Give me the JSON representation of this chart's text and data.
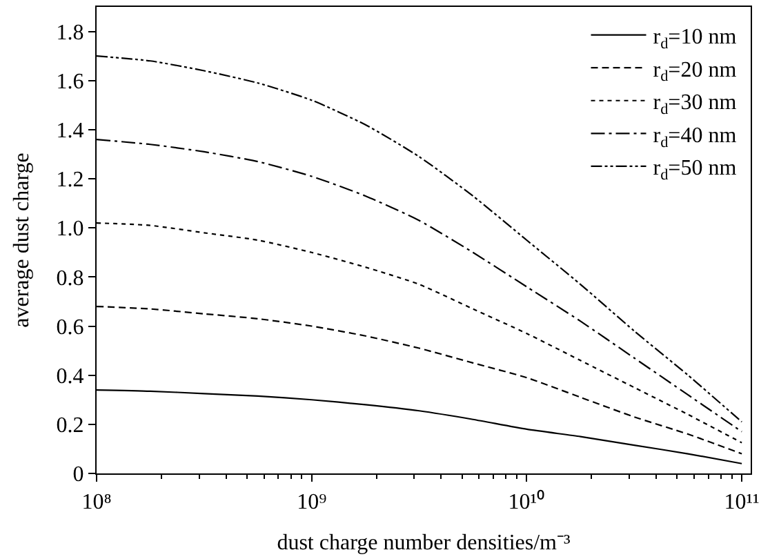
{
  "chart_data": {
    "type": "line",
    "xlabel": "dust charge number densities/m⁻³",
    "ylabel": "average dust charge",
    "log": "x",
    "x": [
      100000000.0,
      177800000.0,
      316200000.0,
      562300000.0,
      1000000000.0,
      1778000000.0,
      3162000000.0,
      5623000000.0,
      10000000000.0,
      17780000000.0,
      31620000000.0,
      56230000000.0,
      100000000000.0
    ],
    "xlim": [
      100000000.0,
      110000000000.0
    ],
    "xticks": [
      {
        "value": 100000000.0,
        "label": "10⁸"
      },
      {
        "value": 1000000000.0,
        "label": "10⁹"
      },
      {
        "value": 10000000000.0,
        "label": "10¹⁰"
      },
      {
        "value": 100000000000.0,
        "label": "10¹¹"
      }
    ],
    "ylim": [
      0,
      1.9
    ],
    "yticks": [
      0,
      0.2,
      0.4,
      0.6,
      0.8,
      {
        "value": 1.0,
        "label": "1.0"
      },
      1.2,
      1.4,
      1.6,
      1.8
    ],
    "legend": "top right",
    "marker": "none",
    "series": [
      {
        "name": "r$_{d}$=10 nm",
        "color": "#000000",
        "line_style": "solid",
        "values": [
          0.34,
          0.335,
          0.325,
          0.315,
          0.3,
          0.28,
          0.255,
          0.22,
          0.18,
          0.15,
          0.115,
          0.08,
          0.04
        ]
      },
      {
        "name": "r$_{d}$=20 nm",
        "color": "#000000",
        "line_style": "dashed",
        "values": [
          0.68,
          0.67,
          0.65,
          0.63,
          0.6,
          0.56,
          0.51,
          0.45,
          0.39,
          0.31,
          0.23,
          0.16,
          0.08
        ]
      },
      {
        "name": "r$_{d}$=30 nm",
        "color": "#000000",
        "line_style": "dotted",
        "values": [
          1.02,
          1.01,
          0.98,
          0.95,
          0.9,
          0.84,
          0.77,
          0.67,
          0.57,
          0.46,
          0.35,
          0.24,
          0.125
        ]
      },
      {
        "name": "r$_{d}$=40 nm",
        "color": "#000000",
        "line_style": "dashdot",
        "values": [
          1.36,
          1.34,
          1.31,
          1.27,
          1.21,
          1.13,
          1.03,
          0.9,
          0.76,
          0.62,
          0.47,
          0.32,
          0.17
        ]
      },
      {
        "name": "r$_{d}$=50 nm",
        "color": "#000000",
        "line_style": "dashdotdot",
        "values": [
          1.7,
          1.68,
          1.64,
          1.59,
          1.52,
          1.42,
          1.29,
          1.13,
          0.95,
          0.77,
          0.58,
          0.4,
          0.21
        ]
      }
    ]
  }
}
